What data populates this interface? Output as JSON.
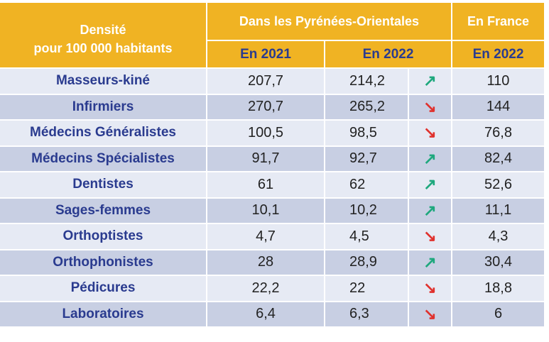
{
  "header": {
    "label_line1": "Densité",
    "label_line2": "pour 100 000 habitants",
    "group_po": "Dans les Pyrénées-Orientales",
    "group_fr": "En France",
    "sub_2021": "En 2021",
    "sub_2022": "En 2022",
    "sub_fr_2022": "En 2022"
  },
  "colors": {
    "header_bg": "#f0b323",
    "up_arrow": "#1ea87d",
    "down_arrow": "#e0312d",
    "label_text": "#2a3b8f"
  },
  "rows": [
    {
      "label": "Masseurs-kiné",
      "po_2021": "207,7",
      "po_2022": "214,2",
      "trend": "↗",
      "trend_dir": "up",
      "fr_2022": "110"
    },
    {
      "label": "Infirmiers",
      "po_2021": "270,7",
      "po_2022": "265,2",
      "trend": "↘",
      "trend_dir": "down",
      "fr_2022": "144"
    },
    {
      "label": "Médecins Généralistes",
      "po_2021": "100,5",
      "po_2022": "98,5",
      "trend": "↘",
      "trend_dir": "down",
      "fr_2022": "76,8"
    },
    {
      "label": "Médecins Spécialistes",
      "po_2021": "91,7",
      "po_2022": "92,7",
      "trend": "↗",
      "trend_dir": "up",
      "fr_2022": "82,4"
    },
    {
      "label": "Dentistes",
      "po_2021": "61",
      "po_2022": "62",
      "trend": "↗",
      "trend_dir": "up",
      "fr_2022": "52,6"
    },
    {
      "label": "Sages-femmes",
      "po_2021": "10,1",
      "po_2022": "10,2",
      "trend": "↗",
      "trend_dir": "up",
      "fr_2022": "11,1"
    },
    {
      "label": "Orthoptistes",
      "po_2021": "4,7",
      "po_2022": "4,5",
      "trend": "↘",
      "trend_dir": "down",
      "fr_2022": "4,3"
    },
    {
      "label": "Orthophonistes",
      "po_2021": "28",
      "po_2022": "28,9",
      "trend": "↗",
      "trend_dir": "up",
      "fr_2022": "30,4"
    },
    {
      "label": "Pédicures",
      "po_2021": "22,2",
      "po_2022": "22",
      "trend": "↘",
      "trend_dir": "down",
      "fr_2022": "18,8"
    },
    {
      "label": "Laboratoires",
      "po_2021": "6,4",
      "po_2022": "6,3",
      "trend": "↘",
      "trend_dir": "down",
      "fr_2022": "6"
    }
  ]
}
